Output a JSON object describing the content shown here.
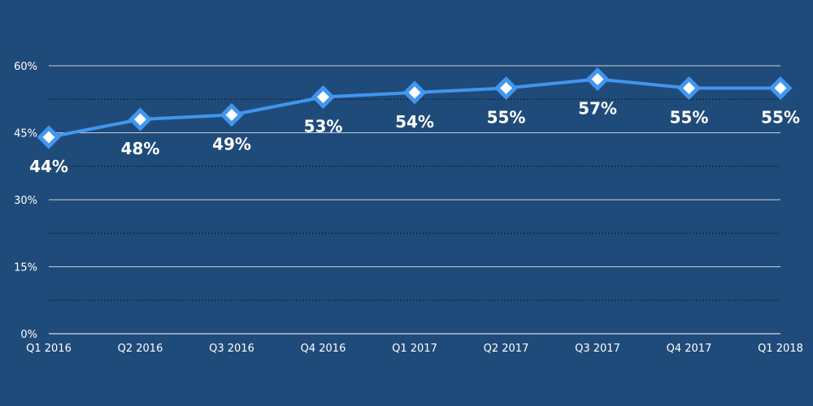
{
  "chart_data": {
    "type": "line",
    "title": "",
    "xlabel": "",
    "ylabel": "",
    "categories": [
      "Q1 2016",
      "Q2 2016",
      "Q3 2016",
      "Q4 2016",
      "Q1 2017",
      "Q2 2017",
      "Q3 2017",
      "Q4 2017",
      "Q1 2018"
    ],
    "series": [
      {
        "name": "",
        "values": [
          44,
          48,
          49,
          53,
          54,
          55,
          57,
          55,
          55
        ]
      }
    ],
    "data_labels": [
      "44%",
      "48%",
      "49%",
      "53%",
      "54%",
      "55%",
      "57%",
      "55%",
      "55%"
    ],
    "ylim": [
      0,
      60
    ],
    "yticks": [
      0,
      15,
      30,
      45,
      60
    ],
    "ytick_labels": [
      "0%",
      "15%",
      "30%",
      "45%",
      "60%"
    ],
    "minor_gridlines": [
      7.5,
      22.5,
      37.5,
      52.5
    ],
    "grid": true,
    "legend": "none",
    "colors": {
      "background": "#1f4b7a",
      "line": "#4196f0",
      "marker_fill": "#ffffff",
      "grid": "#c8d2dc",
      "minor_grid": "#0a1a2a"
    }
  }
}
